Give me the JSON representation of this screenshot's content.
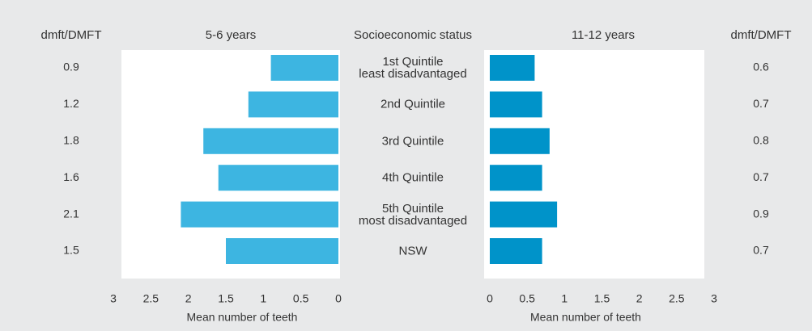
{
  "categories_title": "Socioeconomic status",
  "categories": [
    "1st Quintile\nleast disadvantaged",
    "2nd Quintile",
    "3rd Quintile",
    "4th Quintile",
    "5th Quintile\nmost disadvantaged",
    "NSW"
  ],
  "chart_data": [
    {
      "type": "bar",
      "orientation": "horizontal",
      "x_direction": "reversed",
      "title": "5-6 years",
      "value_column_title": "dmft/DMFT",
      "xlabel": "Mean number of teeth",
      "values": [
        0.9,
        1.2,
        1.8,
        1.6,
        2.1,
        1.5
      ],
      "color": "#3db5e1",
      "xlim": [
        0,
        3
      ],
      "xticks": [
        0,
        0.5,
        1,
        1.5,
        2,
        2.5,
        3
      ]
    },
    {
      "type": "bar",
      "orientation": "horizontal",
      "x_direction": "normal",
      "title": "11-12 years",
      "value_column_title": "dmft/DMFT",
      "xlabel": "Mean number of teeth",
      "values": [
        0.6,
        0.7,
        0.8,
        0.7,
        0.9,
        0.7
      ],
      "color": "#0093c9",
      "xlim": [
        0,
        3
      ],
      "xticks": [
        0,
        0.5,
        1,
        1.5,
        2,
        2.5,
        3
      ]
    }
  ]
}
